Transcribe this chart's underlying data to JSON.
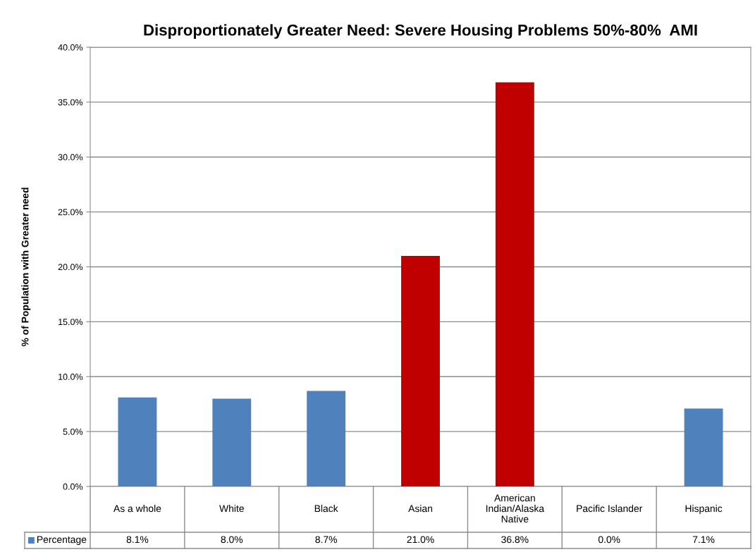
{
  "chart_data": {
    "type": "bar",
    "title": "Disproportionately Greater Need: Severe Housing Problems 50%-80%  AMI",
    "ylabel": "% of Population with Greater need",
    "categories": [
      "As a whole",
      "White",
      "Black",
      "Asian",
      "American Indian/Alaska Native",
      "Pacific Islander",
      "Hispanic"
    ],
    "series": [
      {
        "name": "Percentage",
        "color": "#4f81bd",
        "colors": [
          "#4f81bd",
          "#4f81bd",
          "#4f81bd",
          "#c00000",
          "#c00000",
          "#4f81bd",
          "#4f81bd"
        ],
        "values": [
          8.1,
          8.0,
          8.7,
          21.0,
          36.8,
          0.0,
          7.1
        ],
        "value_labels": [
          "8.1%",
          "8.0%",
          "8.7%",
          "21.0%",
          "36.8%",
          "0.0%",
          "7.1%"
        ]
      }
    ],
    "ylim": [
      0,
      40
    ],
    "yticks": [
      {
        "value": 0,
        "label": "0.0%"
      },
      {
        "value": 5,
        "label": "5.0%"
      },
      {
        "value": 10,
        "label": "10.0%"
      },
      {
        "value": 15,
        "label": "15.0%"
      },
      {
        "value": 20,
        "label": "20.0%"
      },
      {
        "value": 25,
        "label": "25.0%"
      },
      {
        "value": 30,
        "label": "30.0%"
      },
      {
        "value": 35,
        "label": "35.0%"
      },
      {
        "value": 40,
        "label": "40.0%"
      }
    ],
    "grid": "y",
    "legend": "bottom"
  }
}
